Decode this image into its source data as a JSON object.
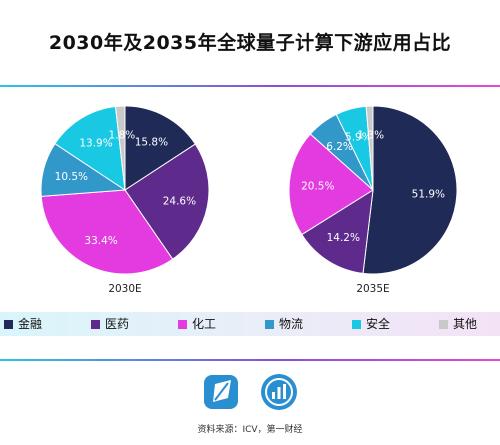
{
  "title": "2030年及2035年全球量子计算下游应用占比",
  "source": "资料来源：ICV，第一财经",
  "colors": {
    "finance": "#1f2a56",
    "medicine": "#5e2a8c",
    "chemical": "#e33be0",
    "logistics": "#3198c9",
    "security": "#19c8e2",
    "other": "#c9c9c9"
  },
  "legend": [
    {
      "label": "金融",
      "color": "#1f2a56"
    },
    {
      "label": "医药",
      "color": "#5e2a8c"
    },
    {
      "label": "化工",
      "color": "#e33be0"
    },
    {
      "label": "物流",
      "color": "#3198c9"
    },
    {
      "label": "安全",
      "color": "#19c8e2"
    },
    {
      "label": "其他",
      "color": "#c9c9c9"
    }
  ],
  "icons": [
    "leaf-logo-icon",
    "chart-logo-icon"
  ],
  "chart_data": [
    {
      "type": "pie",
      "label": "2030E",
      "categories": [
        "金融",
        "医药",
        "化工",
        "物流",
        "安全",
        "其他"
      ],
      "values": [
        15.8,
        24.6,
        33.4,
        10.5,
        13.9,
        1.8
      ],
      "value_labels": [
        "15.8%",
        "24.6%",
        "33.4%",
        "10.5%",
        "13.9%",
        "1.8%"
      ]
    },
    {
      "type": "pie",
      "label": "2035E",
      "categories": [
        "金融",
        "医药",
        "化工",
        "物流",
        "安全",
        "其他"
      ],
      "values": [
        51.9,
        14.2,
        20.5,
        6.2,
        5.9,
        1.3
      ],
      "value_labels": [
        "51.9%",
        "14.2%",
        "20.5%",
        "6.2%",
        "5.9%",
        "1.3%"
      ]
    }
  ]
}
